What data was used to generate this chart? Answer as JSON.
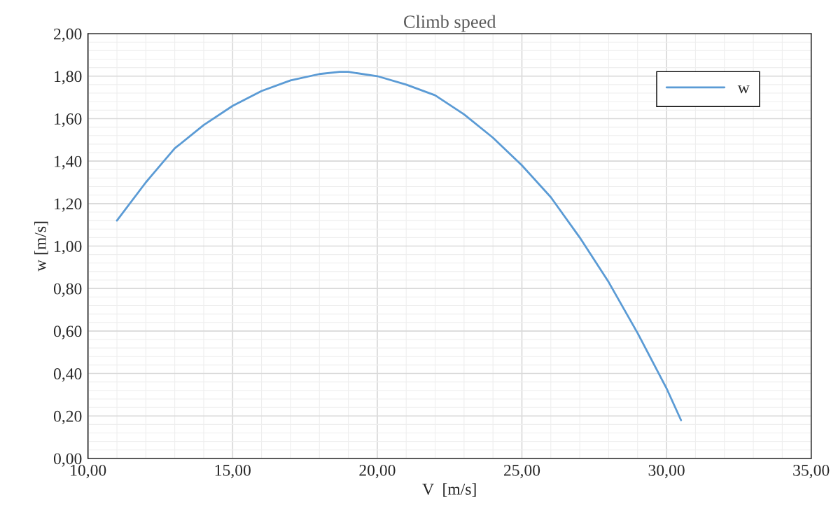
{
  "chart_data": {
    "type": "line",
    "title": "Climb speed",
    "xlabel": "V  [m/s]",
    "ylabel": "w [m/s]",
    "series": [
      {
        "name": "w",
        "color": "#5b9bd5",
        "x": [
          11,
          12,
          12.5,
          13,
          14,
          15,
          16,
          17,
          18,
          18.7,
          19,
          20,
          21,
          22,
          23,
          24,
          25,
          26,
          27,
          28,
          29,
          30,
          30.5
        ],
        "values": [
          1.12,
          1.3,
          1.38,
          1.46,
          1.57,
          1.66,
          1.73,
          1.78,
          1.81,
          1.82,
          1.82,
          1.8,
          1.76,
          1.71,
          1.62,
          1.51,
          1.38,
          1.23,
          1.04,
          0.83,
          0.59,
          0.33,
          0.18
        ]
      }
    ],
    "xlim": [
      10,
      35
    ],
    "ylim": [
      0,
      2
    ],
    "xticks": [
      {
        "value": 10,
        "label": "10,00"
      },
      {
        "value": 15,
        "label": "15,00"
      },
      {
        "value": 20,
        "label": "20,00"
      },
      {
        "value": 25,
        "label": "25,00"
      },
      {
        "value": 30,
        "label": "30,00"
      },
      {
        "value": 35,
        "label": "35,00"
      }
    ],
    "yticks": [
      {
        "value": 0,
        "label": "0,00"
      },
      {
        "value": 0.2,
        "label": "0,20"
      },
      {
        "value": 0.4,
        "label": "0,40"
      },
      {
        "value": 0.6,
        "label": "0,60"
      },
      {
        "value": 0.8,
        "label": "0,80"
      },
      {
        "value": 1.0,
        "label": "1,00"
      },
      {
        "value": 1.2,
        "label": "1,20"
      },
      {
        "value": 1.4,
        "label": "1,40"
      },
      {
        "value": 1.6,
        "label": "1,60"
      },
      {
        "value": 1.8,
        "label": "1,80"
      },
      {
        "value": 2.0,
        "label": "2,00"
      }
    ],
    "grid": true,
    "legend": "top right",
    "marker": "none",
    "line_style": "solid"
  }
}
